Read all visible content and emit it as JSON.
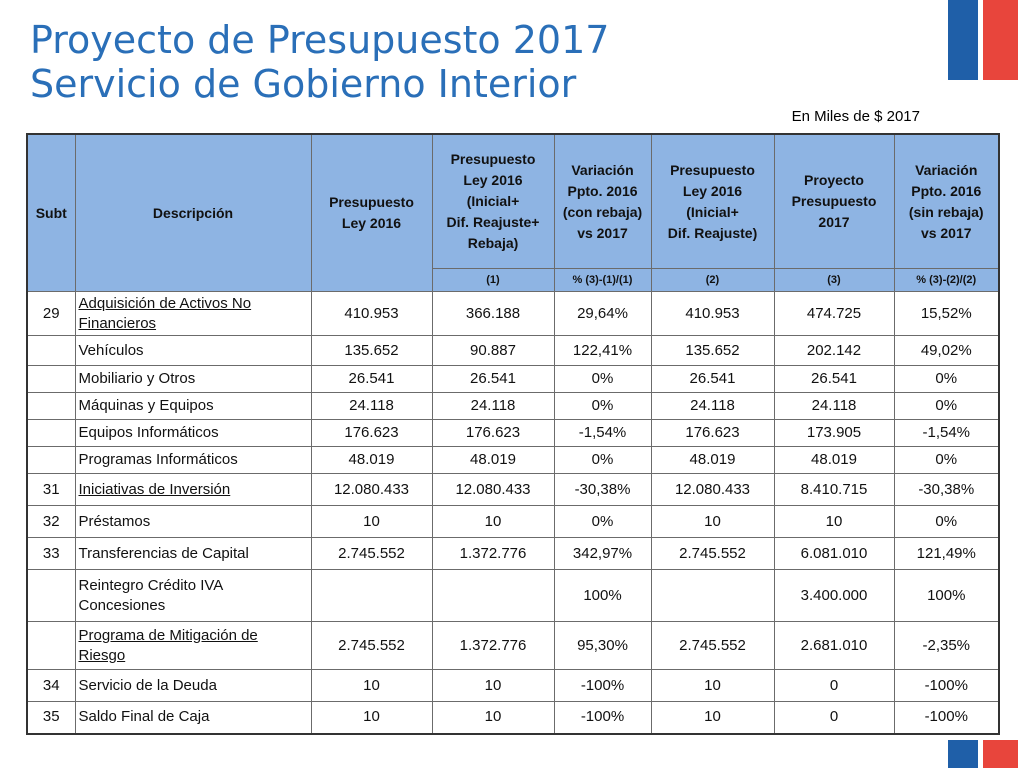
{
  "title_line1": "Proyecto de Presupuesto 2017",
  "title_line2": "Servicio de Gobierno Interior",
  "subtitle": "En Miles de $ 2017",
  "headers": {
    "subt": "Subt",
    "desc": "Descripción",
    "c1": "Presupuesto\nLey 2016",
    "c2": "Presupuesto\nLey 2016\n(Inicial+\nDif. Reajuste+\nRebaja)",
    "c3": "Variación\nPpto. 2016\n(con rebaja)\nvs 2017",
    "c4": "Presupuesto\nLey 2016\n(Inicial+\nDif. Reajuste)",
    "c5": "Proyecto\nPresupuesto\n2017",
    "c6": "Variación\nPpto. 2016\n(sin rebaja)\nvs 2017"
  },
  "subheaders": {
    "c2": "(1)",
    "c3": "% (3)-(1)/(1)",
    "c4": "(2)",
    "c5": "(3)",
    "c6": "% (3)-(2)/(2)"
  },
  "rows": [
    {
      "subt": "29",
      "desc": "Adquisición de Activos No Financieros",
      "c1": "410.953",
      "c2": "366.188",
      "c3": "29,64%",
      "c4": "410.953",
      "c5": "474.725",
      "c6": "15,52%"
    },
    {
      "subt": "",
      "desc": "Vehículos",
      "c1": "135.652",
      "c2": "90.887",
      "c3": "122,41%",
      "c4": "135.652",
      "c5": "202.142",
      "c6": "49,02%"
    },
    {
      "subt": "",
      "desc": "Mobiliario  y Otros",
      "c1": "26.541",
      "c2": "26.541",
      "c3": "0%",
      "c4": "26.541",
      "c5": "26.541",
      "c6": "0%"
    },
    {
      "subt": "",
      "desc": "Máquinas y Equipos",
      "c1": "24.118",
      "c2": "24.118",
      "c3": "0%",
      "c4": "24.118",
      "c5": "24.118",
      "c6": "0%"
    },
    {
      "subt": "",
      "desc": "Equipos Informáticos",
      "c1": "176.623",
      "c2": "176.623",
      "c3": "-1,54%",
      "c4": "176.623",
      "c5": "173.905",
      "c6": "-1,54%"
    },
    {
      "subt": "",
      "desc": "Programas Informáticos",
      "c1": "48.019",
      "c2": "48.019",
      "c3": "0%",
      "c4": "48.019",
      "c5": "48.019",
      "c6": "0%"
    },
    {
      "subt": "31",
      "desc": "Iniciativas de Inversión",
      "c1": "12.080.433",
      "c2": "12.080.433",
      "c3": "-30,38%",
      "c4": "12.080.433",
      "c5": "8.410.715",
      "c6": "-30,38%"
    },
    {
      "subt": "32",
      "desc": "Préstamos",
      "c1": "10",
      "c2": "10",
      "c3": "0%",
      "c4": "10",
      "c5": "10",
      "c6": "0%"
    },
    {
      "subt": "33",
      "desc": "Transferencias de Capital",
      "c1": "2.745.552",
      "c2": "1.372.776",
      "c3": "342,97%",
      "c4": "2.745.552",
      "c5": "6.081.010",
      "c6": "121,49%"
    },
    {
      "subt": "",
      "desc": "Reintegro Crédito IVA Concesiones",
      "c1": "",
      "c2": "",
      "c3": "100%",
      "c4": "",
      "c5": "3.400.000",
      "c6": "100%"
    },
    {
      "subt": "",
      "desc": "Programa de Mitigación de Riesgo",
      "c1": "2.745.552",
      "c2": "1.372.776",
      "c3": "95,30%",
      "c4": "2.745.552",
      "c5": "2.681.010",
      "c6": "-2,35%"
    },
    {
      "subt": "34",
      "desc": "Servicio de la Deuda",
      "c1": "10",
      "c2": "10",
      "c3": "-100%",
      "c4": "10",
      "c5": "0",
      "c6": "-100%"
    },
    {
      "subt": "35",
      "desc": "Saldo Final de Caja",
      "c1": "10",
      "c2": "10",
      "c3": "-100%",
      "c4": "10",
      "c5": "0",
      "c6": "-100%"
    }
  ]
}
